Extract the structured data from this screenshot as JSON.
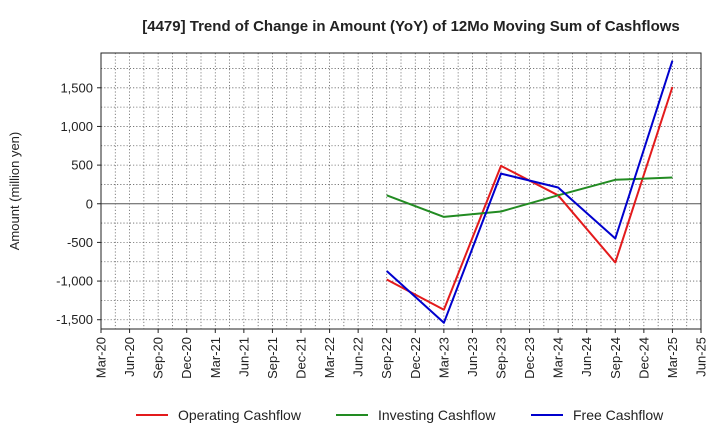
{
  "chart_data": {
    "type": "line",
    "title": "[4479]  Trend of Change in Amount (YoY) of 12Mo Moving Sum of Cashflows",
    "ylabel": "Amount (million yen)",
    "xlabel": "",
    "ylim": [
      -1620,
      1950
    ],
    "yticks": [
      -1500,
      -1000,
      -500,
      0,
      500,
      1000,
      1500
    ],
    "ytick_labels": [
      "-1,500",
      "-1,000",
      "-500",
      "0",
      "500",
      "1,000",
      "1,500"
    ],
    "xtick_labels": [
      "Mar-20",
      "Jun-20",
      "Sep-20",
      "Dec-20",
      "Mar-21",
      "Jun-21",
      "Sep-21",
      "Dec-21",
      "Mar-22",
      "Jun-22",
      "Sep-22",
      "Dec-22",
      "Mar-23",
      "Jun-23",
      "Sep-23",
      "Dec-23",
      "Mar-24",
      "Jun-24",
      "Sep-24",
      "Dec-24",
      "Mar-25",
      "Jun-25"
    ],
    "grid": true,
    "legend_position": "bottom",
    "series": [
      {
        "name": "Operating Cashflow",
        "color": "#e31a1c",
        "points": [
          {
            "x": "Sep-22",
            "y": -980
          },
          {
            "x": "Mar-23",
            "y": -1370
          },
          {
            "x": "Sep-23",
            "y": 490
          },
          {
            "x": "Mar-24",
            "y": 110
          },
          {
            "x": "Sep-24",
            "y": -760
          },
          {
            "x": "Mar-25",
            "y": 1510
          }
        ]
      },
      {
        "name": "Investing Cashflow",
        "color": "#228b22",
        "points": [
          {
            "x": "Sep-22",
            "y": 110
          },
          {
            "x": "Mar-23",
            "y": -170
          },
          {
            "x": "Sep-23",
            "y": -100
          },
          {
            "x": "Mar-24",
            "y": 110
          },
          {
            "x": "Sep-24",
            "y": 310
          },
          {
            "x": "Mar-25",
            "y": 340
          }
        ]
      },
      {
        "name": "Free Cashflow",
        "color": "#0000cd",
        "points": [
          {
            "x": "Sep-22",
            "y": -870
          },
          {
            "x": "Mar-23",
            "y": -1540
          },
          {
            "x": "Sep-23",
            "y": 390
          },
          {
            "x": "Mar-24",
            "y": 210
          },
          {
            "x": "Sep-24",
            "y": -450
          },
          {
            "x": "Mar-25",
            "y": 1850
          }
        ]
      }
    ]
  }
}
